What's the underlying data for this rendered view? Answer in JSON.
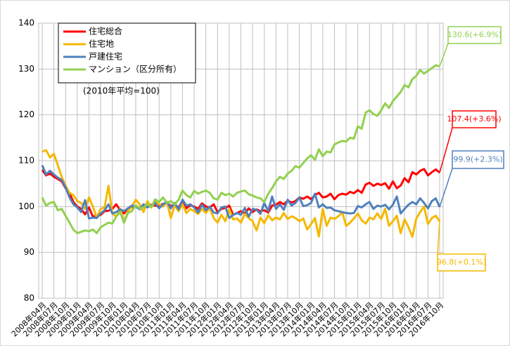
{
  "chart_data": {
    "type": "line",
    "note": "(2010年平均=100)",
    "categories": [
      "2008年04月",
      null,
      null,
      "2008年07月",
      null,
      null,
      "2008年10月",
      null,
      null,
      "2009年01月",
      null,
      null,
      "2009年04月",
      null,
      null,
      "2009年07月",
      null,
      null,
      "2009年10月",
      null,
      null,
      "2010年01月",
      null,
      null,
      "2010年04月",
      null,
      null,
      "2010年07月",
      null,
      null,
      "2010年10月",
      null,
      null,
      "2011年01月",
      null,
      null,
      "2011年04月",
      null,
      null,
      "2011年07月",
      null,
      null,
      "2011年10月",
      null,
      null,
      "2012年01月",
      null,
      null,
      "2012年04月",
      null,
      null,
      "2012年07月",
      null,
      null,
      "2012年10月",
      null,
      null,
      "2013年01月",
      null,
      null,
      "2013年04月",
      null,
      null,
      "2013年07月",
      null,
      null,
      "2013年10月",
      null,
      null,
      "2014年01月",
      null,
      null,
      "2014年04月",
      null,
      null,
      "2014年07月",
      null,
      null,
      "2014年10月",
      null,
      null,
      "2015年01月",
      null,
      null,
      "2015年04月",
      null,
      null,
      "2015年07月",
      null,
      null,
      "2015年10月",
      null,
      null,
      "2016年01月",
      null,
      null,
      "2016年04月",
      null,
      null,
      "2016年07月",
      null,
      null,
      "2016年10月"
    ],
    "series": [
      {
        "name": "住宅総合",
        "color": "#ff0000",
        "values": [
          108,
          106.8,
          107.2,
          106.5,
          106,
          105.5,
          104,
          103,
          101,
          100,
          99.5,
          98.3,
          99.8,
          97.8,
          98,
          98.2,
          99,
          99.1,
          99.5,
          100.5,
          99.2,
          98.5,
          99.6,
          99.8,
          100,
          99.7,
          100.2,
          100,
          100.4,
          100.2,
          100.1,
          100.6,
          100.8,
          100.1,
          100.4,
          99.8,
          101.3,
          99.6,
          100.3,
          100,
          99.5,
          100.7,
          100,
          99.8,
          100.5,
          98.8,
          99.5,
          99.7,
          100.2,
          98.2,
          98.6,
          99,
          98.5,
          99.6,
          98.8,
          99.4,
          99,
          99.2,
          98.7,
          100.2,
          100.4,
          101,
          100.5,
          101.3,
          100.9,
          101.2,
          102,
          101.7,
          102.2,
          101.6,
          102.5,
          103,
          102,
          102.2,
          102.8,
          101.6,
          102.5,
          102.8,
          102.6,
          103.2,
          102.9,
          103.6,
          103,
          104.8,
          105.2,
          104.5,
          105,
          104.7,
          105.1,
          103.9,
          105.5,
          104,
          104.6,
          106.2,
          105.3,
          107.5,
          107,
          107.8,
          108.2,
          106.8,
          107.5,
          108.1,
          107.4
        ]
      },
      {
        "name": "住宅地",
        "color": "#f5b800",
        "values": [
          112,
          112.3,
          110.7,
          111.5,
          109,
          106.5,
          104.5,
          103,
          102.5,
          101.2,
          100.8,
          99.5,
          102,
          100,
          97.6,
          99.5,
          99.8,
          104.5,
          98.5,
          97.8,
          99.5,
          96.5,
          99,
          100,
          101.5,
          100.5,
          98.8,
          101.2,
          99.8,
          101,
          100.5,
          100,
          101,
          97.5,
          100.3,
          99,
          100.5,
          98.6,
          99.5,
          99,
          98.4,
          99.5,
          98.6,
          99.7,
          97.5,
          96.5,
          98.2,
          96.8,
          99.5,
          97.2,
          97.4,
          96.5,
          98.4,
          97.5,
          96.8,
          94.8,
          97.6,
          96.4,
          98.1,
          97,
          97.6,
          97.2,
          98.6,
          97.3,
          97.9,
          97.5,
          96.8,
          97.4,
          95,
          96.2,
          97.5,
          93.5,
          99.5,
          95.8,
          97.6,
          97.3,
          97.9,
          98.8,
          95.8,
          96.5,
          97.4,
          98.5,
          97,
          96.3,
          97.6,
          97.2,
          98.5,
          97.3,
          99.5,
          95.8,
          96.8,
          98,
          94.2,
          97.2,
          95.5,
          93.4,
          97.4,
          98.8,
          100,
          96.2,
          97.5,
          98,
          96.8
        ]
      },
      {
        "name": "戸建住宅",
        "color": "#4f81bd",
        "values": [
          109,
          107,
          107.8,
          107,
          106.3,
          105.8,
          104.2,
          102,
          100.5,
          99.8,
          98.8,
          101.4,
          97.4,
          97.6,
          97.5,
          98.5,
          99.2,
          100.5,
          98.5,
          98.8,
          99.4,
          99,
          99.6,
          100.2,
          100,
          99.4,
          100.5,
          99.8,
          100.3,
          100.8,
          99.6,
          100.5,
          101,
          99.6,
          100.8,
          99.4,
          101.5,
          100.2,
          100.5,
          99.8,
          98.7,
          100.4,
          99.2,
          100,
          98.7,
          98.5,
          99.8,
          100,
          97.5,
          98.2,
          98.6,
          98.2,
          99.7,
          97.8,
          99.5,
          99.3,
          98.4,
          100.8,
          99,
          102.2,
          99.5,
          100.5,
          99.3,
          101.5,
          100.2,
          100.8,
          102,
          100.1,
          100.3,
          100.8,
          102.8,
          99.8,
          100.5,
          99.7,
          99.8,
          99.2,
          99,
          98.8,
          98.6,
          98.5,
          98.6,
          100.1,
          99.8,
          100.5,
          101,
          99.5,
          100.2,
          100,
          100.4,
          99.4,
          100.4,
          102.2,
          98.5,
          99.5,
          100.4,
          101,
          100.5,
          101.8,
          100.8,
          99.6,
          101.2,
          101.8,
          99.9
        ]
      },
      {
        "name": "マンション（区分所有）",
        "color": "#92d050",
        "values": [
          102,
          100.2,
          100.8,
          101,
          99.2,
          99.5,
          98,
          96.5,
          95,
          94.2,
          94.5,
          94.8,
          94.6,
          95,
          94.2,
          95.5,
          96,
          96.5,
          96.3,
          97.8,
          98.8,
          96.5,
          98.6,
          99,
          100.3,
          99.6,
          99.8,
          100.5,
          99.9,
          101.6,
          101,
          102,
          100.8,
          101.2,
          100.5,
          101.5,
          103.5,
          102.5,
          102,
          103.4,
          102.8,
          103.2,
          103.5,
          103,
          101.8,
          101.5,
          103,
          102.5,
          102.8,
          102.2,
          103,
          103.3,
          103.5,
          102.7,
          102.4,
          102,
          101.8,
          101,
          102.8,
          104,
          105.5,
          106.5,
          106,
          107.2,
          107.8,
          108.8,
          108.5,
          109.5,
          110.5,
          111.2,
          110.2,
          112.5,
          111,
          112,
          111.8,
          113.5,
          114,
          114.3,
          114.2,
          115,
          114.8,
          117.5,
          117,
          120.5,
          121,
          120.2,
          119.8,
          121,
          122.5,
          121.5,
          123,
          124,
          125,
          126.5,
          126,
          127.8,
          128.5,
          129.8,
          129,
          129.6,
          130.2,
          130.8,
          130.6
        ]
      }
    ],
    "annotations": [
      {
        "text": "130.6(+6.9%)",
        "color": "#92d050"
      },
      {
        "text": "107.4(+3.6%)",
        "color": "#ff0000"
      },
      {
        "text": "99.9(+2.3%)",
        "color": "#4f81bd"
      },
      {
        "text": "96.8(+0.1%)",
        "color": "#f5b800"
      }
    ],
    "ylim": [
      80,
      140
    ],
    "yticks": [
      80,
      90,
      100,
      110,
      120,
      130,
      140
    ],
    "grid": true
  }
}
